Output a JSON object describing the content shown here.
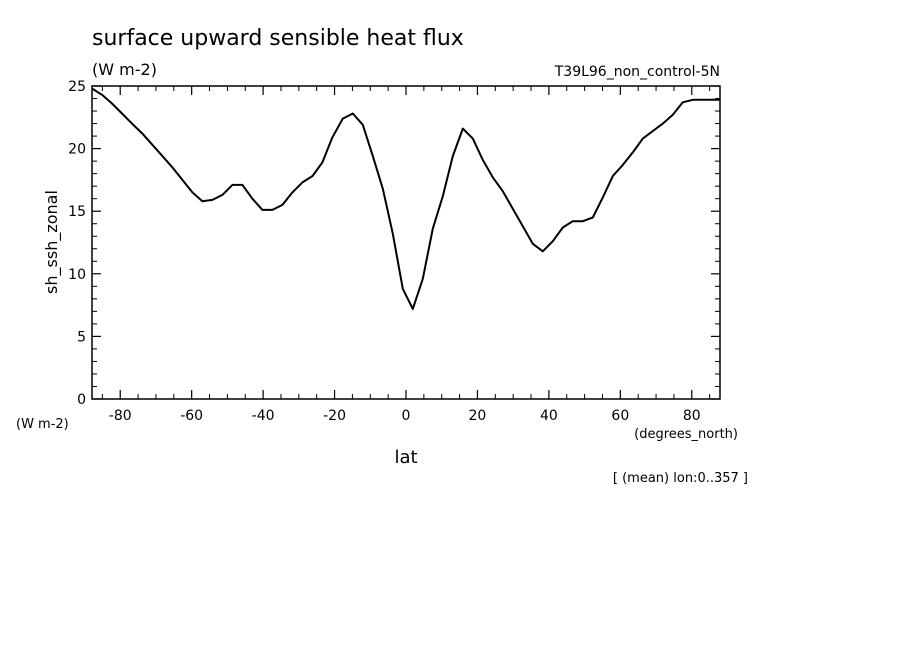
{
  "chart_data": {
    "type": "line",
    "title": "surface upward sensible heat flux",
    "units": "(W m-2)",
    "run_label": "T39L96_non_control-5N",
    "ylabel": "sh_ssh_zonal",
    "ylabel_units": "(W m-2)",
    "xlabel": "lat",
    "xlabel_units": "(degrees_north)",
    "footer": "[ (mean) lon:0..357 ]",
    "xlim": [
      -87.9,
      87.9
    ],
    "ylim": [
      0,
      25
    ],
    "xticks": [
      -80,
      -60,
      -40,
      -20,
      0,
      20,
      40,
      60,
      80
    ],
    "xtick_labels": [
      "-80",
      "-60",
      "-40",
      "-20",
      "0",
      "20",
      "40",
      "60",
      "80"
    ],
    "yticks": [
      0,
      5,
      10,
      15,
      20,
      25
    ],
    "ytick_labels": [
      "0",
      "5",
      "10",
      "15",
      "20",
      "25"
    ],
    "grid": false,
    "series": [
      {
        "x": [
          -87.9,
          -85.1,
          -82.3,
          -79.5,
          -76.7,
          -73.8,
          -71.0,
          -68.2,
          -65.4,
          -62.6,
          -59.8,
          -57.0,
          -54.2,
          -51.4,
          -48.6,
          -45.8,
          -43.0,
          -40.2,
          -37.4,
          -34.6,
          -31.8,
          -29.0,
          -26.2,
          -23.4,
          -20.6,
          -17.7,
          -14.9,
          -12.1,
          -9.3,
          -6.5,
          -3.7,
          -0.9,
          1.9,
          4.7,
          7.5,
          10.3,
          13.1,
          15.9,
          18.7,
          21.5,
          24.3,
          27.1,
          29.9,
          32.7,
          35.5,
          38.3,
          41.1,
          43.9,
          46.7,
          49.5,
          52.3,
          55.1,
          57.9,
          60.7,
          63.5,
          66.3,
          69.1,
          71.9,
          74.7,
          77.5,
          80.3,
          83.1,
          85.9,
          87.9
        ],
        "values": [
          24.8,
          24.3,
          23.6,
          22.8,
          22.0,
          21.2,
          20.3,
          19.4,
          18.5,
          17.5,
          16.5,
          15.8,
          15.9,
          16.3,
          17.1,
          17.1,
          16.0,
          15.1,
          15.1,
          15.5,
          16.5,
          17.3,
          17.8,
          18.9,
          20.9,
          22.4,
          22.8,
          21.9,
          19.4,
          16.8,
          13.2,
          8.8,
          7.2,
          9.6,
          13.6,
          16.2,
          19.4,
          21.6,
          20.8,
          19.1,
          17.7,
          16.6,
          15.2,
          13.8,
          12.4,
          11.8,
          12.6,
          13.7,
          14.2,
          14.2,
          14.5,
          16.1,
          17.8,
          18.7,
          19.7,
          20.8,
          21.4,
          22.0,
          22.7,
          23.7,
          23.9,
          23.9,
          23.9,
          23.9
        ]
      }
    ]
  }
}
